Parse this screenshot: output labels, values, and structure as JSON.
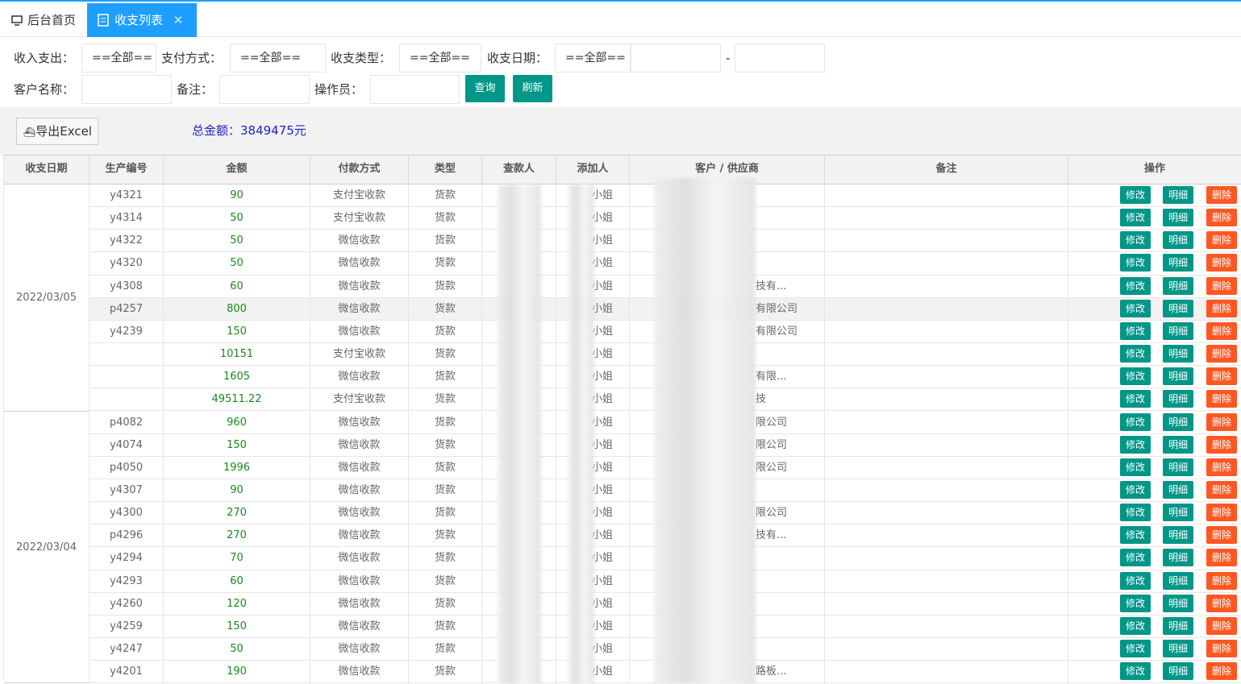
{
  "tabs": [
    "后台首页",
    "收支列表"
  ],
  "filters": {
    "income_expense": {
      "label": "收入支出：",
      "value": "==全部=="
    },
    "payment_method": {
      "label": "支付方式：",
      "value": "==全部=="
    },
    "category": {
      "label": "收支类型：",
      "value": "==全部=="
    },
    "date": {
      "label": "收支日期：",
      "value": "==全部==",
      "separator": "-"
    },
    "customer": {
      "label": "客户名称："
    },
    "remark": {
      "label": "备注："
    },
    "operator": {
      "label": "操作员："
    },
    "search": "查询",
    "refresh": "刷新"
  },
  "toolbar": {
    "export": "导出Excel",
    "total": "总金额：3849475元"
  },
  "table": {
    "headers": [
      "收支日期",
      "生产编号",
      "金额",
      "付款方式",
      "类型",
      "查款人",
      "添加人",
      "客户 / 供应商",
      "备注",
      "操作"
    ],
    "actions": [
      "修改",
      "明细",
      "删除"
    ],
    "groups": [
      {
        "date": "2022/03/05",
        "rows": [
          {
            "code": "y4321",
            "amount": "90",
            "method": "支付宝收款",
            "type": "货款",
            "adder": "小姐"
          },
          {
            "code": "y4314",
            "amount": "50",
            "method": "支付宝收款",
            "type": "货款",
            "adder": "小姐"
          },
          {
            "code": "y4322",
            "amount": "50",
            "method": "微信收款",
            "type": "货款",
            "adder": "小姐"
          },
          {
            "code": "y4320",
            "amount": "50",
            "method": "微信收款",
            "type": "货款",
            "adder": "小姐"
          },
          {
            "code": "y4308",
            "amount": "60",
            "method": "微信收款",
            "type": "货款",
            "adder": "小姐",
            "customer": "技有..."
          },
          {
            "code": "p4257",
            "amount": "800",
            "method": "微信收款",
            "type": "货款",
            "adder": "小姐",
            "customer": "有限公司"
          },
          {
            "code": "y4239",
            "amount": "150",
            "method": "微信收款",
            "type": "货款",
            "adder": "小姐",
            "customer": "有限公司"
          },
          {
            "amount": "10151",
            "method": "支付宝收款",
            "type": "货款",
            "adder": "小姐"
          },
          {
            "amount": "1605",
            "method": "微信收款",
            "type": "货款",
            "adder": "小姐",
            "customer": "有限..."
          },
          {
            "amount": "49511.22",
            "method": "支付宝收款",
            "type": "货款",
            "adder": "小姐",
            "customer": "技"
          }
        ]
      },
      {
        "date": "2022/03/04",
        "rows": [
          {
            "code": "p4082",
            "amount": "960",
            "method": "微信收款",
            "type": "货款",
            "adder": "小姐",
            "customer": "限公司"
          },
          {
            "code": "y4074",
            "amount": "150",
            "method": "微信收款",
            "type": "货款",
            "adder": "小姐",
            "customer": "限公司"
          },
          {
            "code": "p4050",
            "amount": "1996",
            "method": "微信收款",
            "type": "货款",
            "adder": "小姐",
            "customer": "限公司"
          },
          {
            "code": "y4307",
            "amount": "90",
            "method": "微信收款",
            "type": "货款",
            "adder": "小姐"
          },
          {
            "code": "y4300",
            "amount": "270",
            "method": "微信收款",
            "type": "货款",
            "adder": "小姐",
            "customer": "限公司"
          },
          {
            "code": "p4296",
            "amount": "270",
            "method": "微信收款",
            "type": "货款",
            "adder": "小姐",
            "customer": "技有..."
          },
          {
            "code": "y4294",
            "amount": "70",
            "method": "微信收款",
            "type": "货款",
            "adder": "小姐"
          },
          {
            "code": "y4293",
            "amount": "60",
            "method": "微信收款",
            "type": "货款",
            "adder": "小姐"
          },
          {
            "code": "y4260",
            "amount": "120",
            "method": "微信收款",
            "type": "货款",
            "adder": "小姐"
          },
          {
            "code": "y4259",
            "amount": "150",
            "method": "微信收款",
            "type": "货款",
            "adder": "小姐"
          },
          {
            "code": "y4247",
            "amount": "50",
            "method": "微信收款",
            "type": "货款",
            "adder": "小姐"
          },
          {
            "code": "y4201",
            "amount": "190",
            "method": "微信收款",
            "type": "货款",
            "adder": "小姐",
            "customer": "路板..."
          }
        ]
      }
    ]
  }
}
